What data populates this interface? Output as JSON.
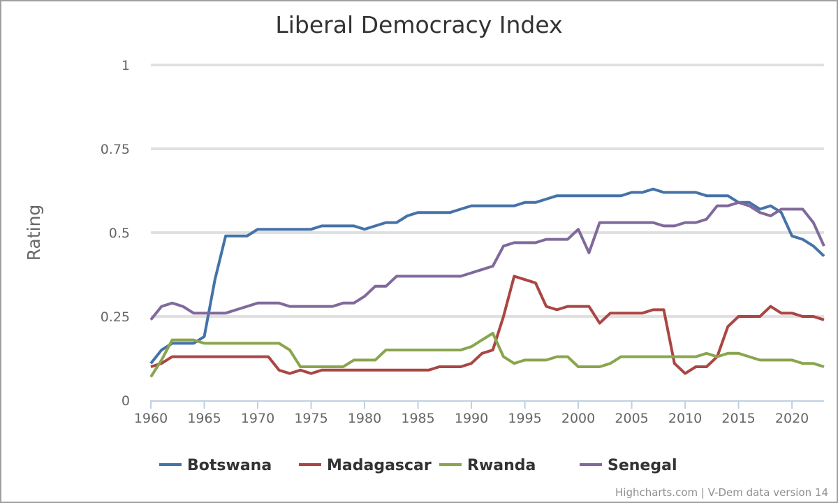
{
  "chart_data": {
    "type": "line",
    "title": "Liberal Democracy Index",
    "xlabel": "",
    "ylabel": "Rating",
    "xlim": [
      1960,
      2023
    ],
    "ylim": [
      0,
      1
    ],
    "x_ticks": [
      "1960",
      "1965",
      "1970",
      "1975",
      "1980",
      "1985",
      "1990",
      "1995",
      "2000",
      "2005",
      "2010",
      "2015",
      "2020"
    ],
    "y_ticks": [
      "0",
      "0.25",
      "0.5",
      "0.75",
      "1"
    ],
    "grid": true,
    "legend_position": "bottom",
    "x_start": 1960,
    "series": [
      {
        "name": "Botswana",
        "color": "#4572a7",
        "values": [
          0.11,
          0.15,
          0.17,
          0.17,
          0.17,
          0.19,
          0.36,
          0.49,
          0.49,
          0.49,
          0.51,
          0.51,
          0.51,
          0.51,
          0.51,
          0.51,
          0.52,
          0.52,
          0.52,
          0.52,
          0.51,
          0.52,
          0.53,
          0.53,
          0.55,
          0.56,
          0.56,
          0.56,
          0.56,
          0.57,
          0.58,
          0.58,
          0.58,
          0.58,
          0.58,
          0.59,
          0.59,
          0.6,
          0.61,
          0.61,
          0.61,
          0.61,
          0.61,
          0.61,
          0.61,
          0.62,
          0.62,
          0.63,
          0.62,
          0.62,
          0.62,
          0.62,
          0.61,
          0.61,
          0.61,
          0.59,
          0.59,
          0.57,
          0.58,
          0.56,
          0.49,
          0.48,
          0.46,
          0.43
        ]
      },
      {
        "name": "Madagascar",
        "color": "#aa4643",
        "values": [
          0.1,
          0.11,
          0.13,
          0.13,
          0.13,
          0.13,
          0.13,
          0.13,
          0.13,
          0.13,
          0.13,
          0.13,
          0.09,
          0.08,
          0.09,
          0.08,
          0.09,
          0.09,
          0.09,
          0.09,
          0.09,
          0.09,
          0.09,
          0.09,
          0.09,
          0.09,
          0.09,
          0.1,
          0.1,
          0.1,
          0.11,
          0.14,
          0.15,
          0.25,
          0.37,
          0.36,
          0.35,
          0.28,
          0.27,
          0.28,
          0.28,
          0.28,
          0.23,
          0.26,
          0.26,
          0.26,
          0.26,
          0.27,
          0.27,
          0.11,
          0.08,
          0.1,
          0.1,
          0.13,
          0.22,
          0.25,
          0.25,
          0.25,
          0.28,
          0.26,
          0.26,
          0.25,
          0.25,
          0.24
        ]
      },
      {
        "name": "Rwanda",
        "color": "#89a54e",
        "values": [
          0.07,
          0.12,
          0.18,
          0.18,
          0.18,
          0.17,
          0.17,
          0.17,
          0.17,
          0.17,
          0.17,
          0.17,
          0.17,
          0.15,
          0.1,
          0.1,
          0.1,
          0.1,
          0.1,
          0.12,
          0.12,
          0.12,
          0.15,
          0.15,
          0.15,
          0.15,
          0.15,
          0.15,
          0.15,
          0.15,
          0.16,
          0.18,
          0.2,
          0.13,
          0.11,
          0.12,
          0.12,
          0.12,
          0.13,
          0.13,
          0.1,
          0.1,
          0.1,
          0.11,
          0.13,
          0.13,
          0.13,
          0.13,
          0.13,
          0.13,
          0.13,
          0.13,
          0.14,
          0.13,
          0.14,
          0.14,
          0.13,
          0.12,
          0.12,
          0.12,
          0.12,
          0.11,
          0.11,
          0.1
        ]
      },
      {
        "name": "Senegal",
        "color": "#80699b",
        "values": [
          0.24,
          0.28,
          0.29,
          0.28,
          0.26,
          0.26,
          0.26,
          0.26,
          0.27,
          0.28,
          0.29,
          0.29,
          0.29,
          0.28,
          0.28,
          0.28,
          0.28,
          0.28,
          0.29,
          0.29,
          0.31,
          0.34,
          0.34,
          0.37,
          0.37,
          0.37,
          0.37,
          0.37,
          0.37,
          0.37,
          0.38,
          0.39,
          0.4,
          0.46,
          0.47,
          0.47,
          0.47,
          0.48,
          0.48,
          0.48,
          0.51,
          0.44,
          0.53,
          0.53,
          0.53,
          0.53,
          0.53,
          0.53,
          0.52,
          0.52,
          0.53,
          0.53,
          0.54,
          0.58,
          0.58,
          0.59,
          0.58,
          0.56,
          0.55,
          0.57,
          0.57,
          0.57,
          0.53,
          0.46
        ]
      }
    ]
  },
  "credits": "Highcharts.com | V-Dem data version 14"
}
